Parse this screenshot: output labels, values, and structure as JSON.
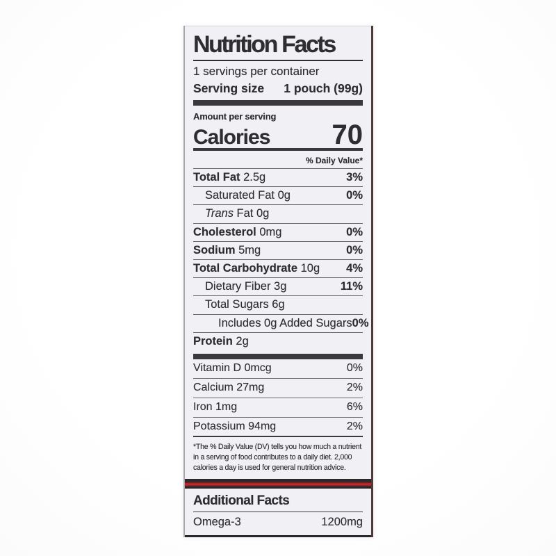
{
  "colors": {
    "page_bg": "#ffffff",
    "label_bg": "#f1f0f4",
    "text": "#2e2d31",
    "thin_rule": "#6b696e",
    "thick_bar": "#3a383d",
    "black_border": "#2a272b",
    "red_stripe": "#c3292c"
  },
  "label": {
    "title": "Nutrition Facts",
    "servings_per_container": "1 servings per container",
    "serving_size_label": "Serving size",
    "serving_size_value": "1 pouch (99g)",
    "amount_per_serving": "Amount per serving",
    "calories_label": "Calories",
    "calories_value": "70",
    "daily_value_header": "% Daily Value*",
    "nutrient_rows": [
      {
        "name": "Total Fat",
        "amount": "2.5g",
        "pct": "3%",
        "bold": true,
        "indent": 0
      },
      {
        "name": "Saturated Fat",
        "amount": "0g",
        "pct": "0%",
        "bold": false,
        "indent": 1
      },
      {
        "italic": "Trans",
        "name": "Fat",
        "amount": "0g",
        "pct": "",
        "bold": false,
        "indent": 1
      },
      {
        "name": "Cholesterol",
        "amount": "0mg",
        "pct": "0%",
        "bold": true,
        "indent": 0
      },
      {
        "name": "Sodium",
        "amount": "5mg",
        "pct": "0%",
        "bold": true,
        "indent": 0
      },
      {
        "name": "Total Carbohydrate",
        "amount": "10g",
        "pct": "4%",
        "bold": true,
        "indent": 0
      },
      {
        "name": "Dietary Fiber",
        "amount": "3g",
        "pct": "11%",
        "bold": false,
        "indent": 1
      },
      {
        "name": "Total Sugars",
        "amount": "6g",
        "pct": "",
        "bold": false,
        "indent": 1
      },
      {
        "name": "Includes 0g Added Sugars",
        "amount": "",
        "pct": "0%",
        "bold": false,
        "indent": 2
      },
      {
        "name": "Protein",
        "amount": "2g",
        "pct": "",
        "bold": true,
        "indent": 0
      }
    ],
    "vitamin_rows": [
      {
        "name": "Vitamin D",
        "amount": "0mcg",
        "pct": "0%"
      },
      {
        "name": "Calcium",
        "amount": "27mg",
        "pct": "2%"
      },
      {
        "name": "Iron",
        "amount": "1mg",
        "pct": "6%"
      },
      {
        "name": "Potassium",
        "amount": "94mg",
        "pct": "2%"
      }
    ],
    "footnote": "*The % Daily Value (DV) tells you how much a nutrient in a serving of food contributes to a daily diet. 2,000 calories a day is used for general nutrition advice.",
    "additional_facts": {
      "title": "Additional Facts",
      "rows": [
        {
          "name": "Omega-3",
          "value": "1200mg"
        }
      ]
    }
  }
}
